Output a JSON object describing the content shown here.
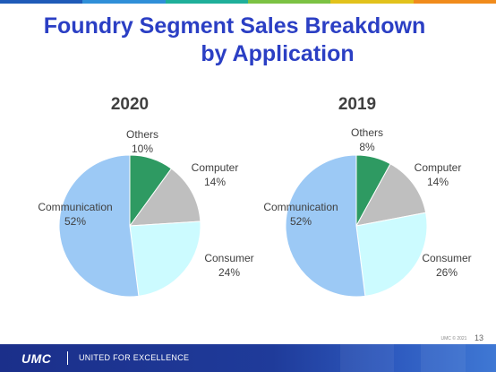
{
  "slide": {
    "title_line1": "Foundry Segment Sales Breakdown",
    "title_line2": "by Application",
    "page_number": "13",
    "copyright": "UMC © 2021",
    "company": "UMC",
    "slogan": "UNITED FOR EXCELLENCE"
  },
  "colors": {
    "title": "#2b3fc4",
    "Others": "#2e9a62",
    "Computer": "#bfbfbf",
    "Consumer": "#ccfbff",
    "Communication": "#9cc9f5",
    "stripe": [
      "#1f5bb8",
      "#2f8fd8",
      "#1faf9a",
      "#7cc243",
      "#e2c21b",
      "#f08b1c"
    ]
  },
  "chart_data": [
    {
      "type": "pie",
      "title": "2020",
      "slices": [
        {
          "label": "Others",
          "value": 10,
          "value_label": "10%"
        },
        {
          "label": "Computer",
          "value": 14,
          "value_label": "14%"
        },
        {
          "label": "Consumer",
          "value": 24,
          "value_label": "24%"
        },
        {
          "label": "Communication",
          "value": 52,
          "value_label": "52%"
        }
      ]
    },
    {
      "type": "pie",
      "title": "2019",
      "slices": [
        {
          "label": "Others",
          "value": 8,
          "value_label": "8%"
        },
        {
          "label": "Computer",
          "value": 14,
          "value_label": "14%"
        },
        {
          "label": "Consumer",
          "value": 26,
          "value_label": "26%"
        },
        {
          "label": "Communication",
          "value": 52,
          "value_label": "52%"
        }
      ]
    }
  ]
}
